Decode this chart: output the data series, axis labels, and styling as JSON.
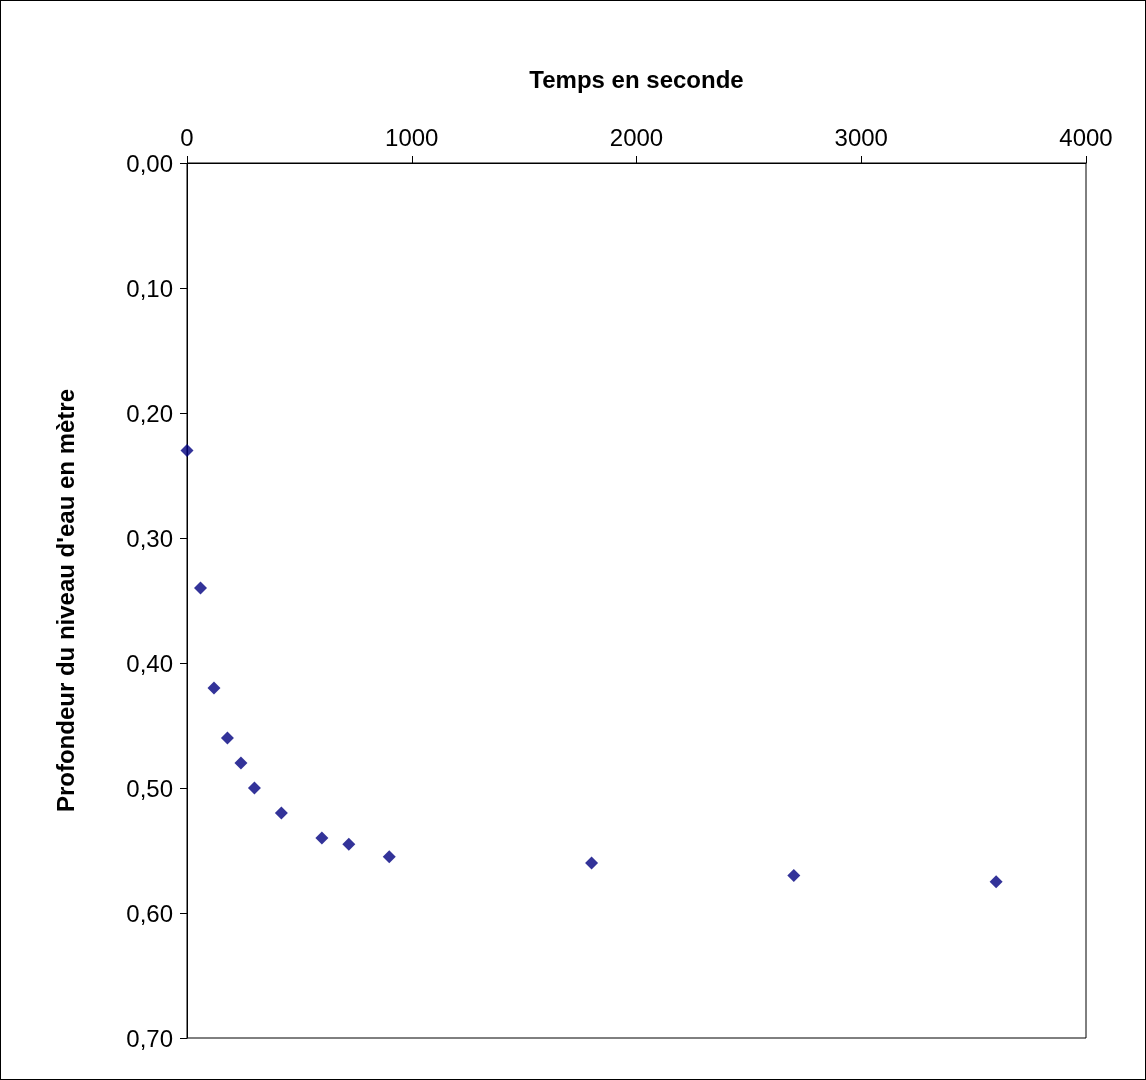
{
  "chart_data": {
    "type": "scatter",
    "xlabel": "Temps en seconde",
    "ylabel": "Profondeur du niveau d'eau en mètre",
    "x": [
      0,
      60,
      120,
      180,
      240,
      300,
      420,
      600,
      720,
      900,
      1800,
      2700,
      3600
    ],
    "values": [
      0.23,
      0.34,
      0.42,
      0.46,
      0.48,
      0.5,
      0.52,
      0.54,
      0.545,
      0.555,
      0.56,
      0.57,
      0.575
    ],
    "color": "#000080",
    "marker": "diamond",
    "grid": false,
    "xlim": [
      0,
      4000
    ],
    "xticks": [
      0,
      1000,
      2000,
      3000,
      4000
    ],
    "ylim": [
      0.7,
      0
    ],
    "yticks": [
      {
        "value": 0,
        "label": "0,00"
      },
      {
        "value": 0.1,
        "label": "0,10"
      },
      {
        "value": 0.2,
        "label": "0,20"
      },
      {
        "value": 0.3,
        "label": "0,30"
      },
      {
        "value": 0.4,
        "label": "0,40"
      },
      {
        "value": 0.5,
        "label": "0,50"
      },
      {
        "value": 0.6,
        "label": "0,60"
      },
      {
        "value": 0.7,
        "label": "0,70"
      }
    ]
  }
}
